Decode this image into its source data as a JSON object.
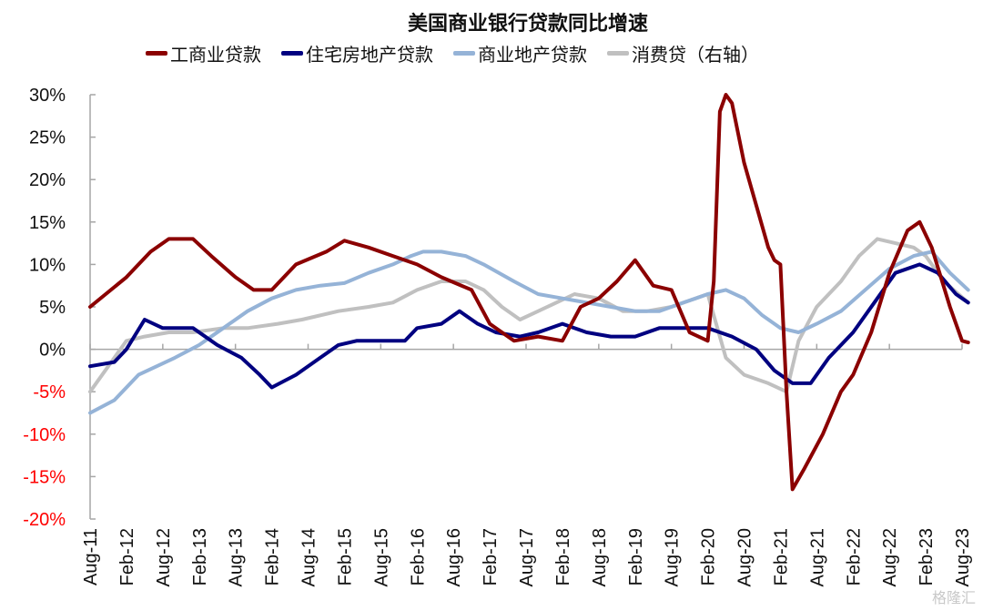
{
  "chart_data": {
    "type": "line",
    "title": "美国商业银行贷款同比增速",
    "xlabel": "",
    "ylabel": "",
    "ylim": [
      -20,
      30
    ],
    "y_ticks": [
      "30%",
      "25%",
      "20%",
      "15%",
      "10%",
      "5%",
      "0%",
      "-5%",
      "-10%",
      "-15%",
      "-20%"
    ],
    "y_tick_values": [
      30,
      25,
      20,
      15,
      10,
      5,
      0,
      -5,
      -10,
      -15,
      -20
    ],
    "negative_tick_color": "#ff0000",
    "x_range": [
      "2011-08",
      "2023-09"
    ],
    "x_ticks": [
      "Aug-11",
      "Feb-12",
      "Aug-12",
      "Feb-13",
      "Aug-13",
      "Feb-14",
      "Aug-14",
      "Feb-15",
      "Aug-15",
      "Feb-16",
      "Aug-16",
      "Feb-17",
      "Aug-17",
      "Feb-18",
      "Aug-18",
      "Feb-19",
      "Aug-19",
      "Feb-20",
      "Aug-20",
      "Feb-21",
      "Aug-21",
      "Feb-22",
      "Aug-22",
      "Feb-23",
      "Aug-23"
    ],
    "grid": false,
    "legend_position": "top",
    "series": [
      {
        "name": "工商业贷款",
        "color": "#8b0000",
        "points": [
          [
            "2011-08",
            5
          ],
          [
            "2012-02",
            8.5
          ],
          [
            "2012-06",
            11.5
          ],
          [
            "2012-09",
            13
          ],
          [
            "2013-01",
            13
          ],
          [
            "2013-04",
            11
          ],
          [
            "2013-08",
            8.5
          ],
          [
            "2013-11",
            7
          ],
          [
            "2014-02",
            7
          ],
          [
            "2014-06",
            10
          ],
          [
            "2014-11",
            11.5
          ],
          [
            "2015-02",
            12.8
          ],
          [
            "2015-06",
            12
          ],
          [
            "2015-10",
            11
          ],
          [
            "2016-02",
            10
          ],
          [
            "2016-06",
            8.5
          ],
          [
            "2016-11",
            7
          ],
          [
            "2017-02",
            3
          ],
          [
            "2017-06",
            1
          ],
          [
            "2017-10",
            1.5
          ],
          [
            "2018-02",
            1
          ],
          [
            "2018-05",
            5
          ],
          [
            "2018-08",
            6
          ],
          [
            "2018-11",
            8
          ],
          [
            "2019-02",
            10.5
          ],
          [
            "2019-05",
            7.5
          ],
          [
            "2019-08",
            7
          ],
          [
            "2019-11",
            2
          ],
          [
            "2020-02",
            1
          ],
          [
            "2020-03",
            8
          ],
          [
            "2020-04",
            28
          ],
          [
            "2020-05",
            30
          ],
          [
            "2020-06",
            29
          ],
          [
            "2020-08",
            22
          ],
          [
            "2020-10",
            17
          ],
          [
            "2020-12",
            12
          ],
          [
            "2021-01",
            10.5
          ],
          [
            "2021-02",
            10
          ],
          [
            "2021-03",
            -5
          ],
          [
            "2021-04",
            -16.5
          ],
          [
            "2021-06",
            -14
          ],
          [
            "2021-09",
            -10
          ],
          [
            "2021-12",
            -5
          ],
          [
            "2022-02",
            -3
          ],
          [
            "2022-05",
            2
          ],
          [
            "2022-08",
            9
          ],
          [
            "2022-11",
            14
          ],
          [
            "2023-01",
            15
          ],
          [
            "2023-03",
            12
          ],
          [
            "2023-06",
            5
          ],
          [
            "2023-08",
            1
          ],
          [
            "2023-09",
            0.8
          ]
        ]
      },
      {
        "name": "住宅房地产贷款",
        "color": "#000080",
        "points": [
          [
            "2011-08",
            -2
          ],
          [
            "2011-12",
            -1.5
          ],
          [
            "2012-02",
            0
          ],
          [
            "2012-05",
            3.5
          ],
          [
            "2012-08",
            2.5
          ],
          [
            "2013-01",
            2.5
          ],
          [
            "2013-05",
            0.5
          ],
          [
            "2013-09",
            -1
          ],
          [
            "2013-12",
            -3
          ],
          [
            "2014-02",
            -4.5
          ],
          [
            "2014-06",
            -3
          ],
          [
            "2014-10",
            -1
          ],
          [
            "2015-01",
            0.5
          ],
          [
            "2015-04",
            1
          ],
          [
            "2015-08",
            1
          ],
          [
            "2015-12",
            1
          ],
          [
            "2016-02",
            2.5
          ],
          [
            "2016-06",
            3
          ],
          [
            "2016-09",
            4.5
          ],
          [
            "2016-12",
            3
          ],
          [
            "2017-03",
            2
          ],
          [
            "2017-07",
            1.5
          ],
          [
            "2017-10",
            2
          ],
          [
            "2018-02",
            3
          ],
          [
            "2018-06",
            2
          ],
          [
            "2018-10",
            1.5
          ],
          [
            "2019-02",
            1.5
          ],
          [
            "2019-06",
            2.5
          ],
          [
            "2019-10",
            2.5
          ],
          [
            "2020-02",
            2.5
          ],
          [
            "2020-06",
            1.5
          ],
          [
            "2020-10",
            0
          ],
          [
            "2021-01",
            -2.5
          ],
          [
            "2021-04",
            -4
          ],
          [
            "2021-07",
            -4
          ],
          [
            "2021-10",
            -1
          ],
          [
            "2022-02",
            2
          ],
          [
            "2022-06",
            6
          ],
          [
            "2022-09",
            9
          ],
          [
            "2023-01",
            10
          ],
          [
            "2023-04",
            9
          ],
          [
            "2023-07",
            6.5
          ],
          [
            "2023-09",
            5.5
          ]
        ]
      },
      {
        "name": "商业地产贷款",
        "color": "#95b3d7",
        "points": [
          [
            "2011-08",
            -7.5
          ],
          [
            "2011-12",
            -6
          ],
          [
            "2012-04",
            -3
          ],
          [
            "2012-10",
            -1
          ],
          [
            "2013-02",
            0.5
          ],
          [
            "2013-06",
            2.5
          ],
          [
            "2013-10",
            4.5
          ],
          [
            "2014-02",
            6
          ],
          [
            "2014-06",
            7
          ],
          [
            "2014-10",
            7.5
          ],
          [
            "2015-02",
            7.8
          ],
          [
            "2015-06",
            9
          ],
          [
            "2015-10",
            10
          ],
          [
            "2016-01",
            11
          ],
          [
            "2016-03",
            11.5
          ],
          [
            "2016-06",
            11.5
          ],
          [
            "2016-10",
            11
          ],
          [
            "2017-01",
            10
          ],
          [
            "2017-06",
            8
          ],
          [
            "2017-10",
            6.5
          ],
          [
            "2018-02",
            6
          ],
          [
            "2018-06",
            5.5
          ],
          [
            "2018-10",
            5
          ],
          [
            "2019-02",
            4.5
          ],
          [
            "2019-06",
            4.5
          ],
          [
            "2019-10",
            5.5
          ],
          [
            "2020-02",
            6.5
          ],
          [
            "2020-05",
            7
          ],
          [
            "2020-08",
            6
          ],
          [
            "2020-11",
            4
          ],
          [
            "2021-02",
            2.5
          ],
          [
            "2021-05",
            2
          ],
          [
            "2021-08",
            3
          ],
          [
            "2021-12",
            4.5
          ],
          [
            "2022-04",
            7
          ],
          [
            "2022-08",
            9.5
          ],
          [
            "2022-12",
            11
          ],
          [
            "2023-03",
            11.5
          ],
          [
            "2023-06",
            9
          ],
          [
            "2023-09",
            7
          ]
        ]
      },
      {
        "name": "消费贷（右轴）",
        "color": "#c0c0c0",
        "points": [
          [
            "2011-08",
            -5
          ],
          [
            "2011-11",
            -2
          ],
          [
            "2012-02",
            1
          ],
          [
            "2012-05",
            1.5
          ],
          [
            "2012-09",
            2
          ],
          [
            "2013-01",
            2
          ],
          [
            "2013-06",
            2.5
          ],
          [
            "2013-10",
            2.5
          ],
          [
            "2014-03",
            3
          ],
          [
            "2014-07",
            3.5
          ],
          [
            "2015-01",
            4.5
          ],
          [
            "2015-06",
            5
          ],
          [
            "2015-10",
            5.5
          ],
          [
            "2016-02",
            7
          ],
          [
            "2016-06",
            8
          ],
          [
            "2016-10",
            8
          ],
          [
            "2017-01",
            7
          ],
          [
            "2017-04",
            5
          ],
          [
            "2017-07",
            3.5
          ],
          [
            "2017-10",
            4.5
          ],
          [
            "2018-01",
            5.5
          ],
          [
            "2018-04",
            6.5
          ],
          [
            "2018-08",
            6
          ],
          [
            "2018-12",
            4.5
          ],
          [
            "2019-04",
            4.5
          ],
          [
            "2019-08",
            5
          ],
          [
            "2019-12",
            6
          ],
          [
            "2020-02",
            6.5
          ],
          [
            "2020-03",
            4
          ],
          [
            "2020-05",
            -1
          ],
          [
            "2020-08",
            -3
          ],
          [
            "2020-12",
            -4
          ],
          [
            "2021-03",
            -5
          ],
          [
            "2021-05",
            1
          ],
          [
            "2021-08",
            5
          ],
          [
            "2021-12",
            8
          ],
          [
            "2022-03",
            11
          ],
          [
            "2022-06",
            13
          ],
          [
            "2022-09",
            12.5
          ],
          [
            "2022-12",
            12
          ],
          [
            "2023-02",
            11
          ],
          [
            "2023-05",
            8
          ],
          [
            "2023-09",
            5.5
          ]
        ]
      }
    ]
  },
  "watermark": "格隆汇"
}
